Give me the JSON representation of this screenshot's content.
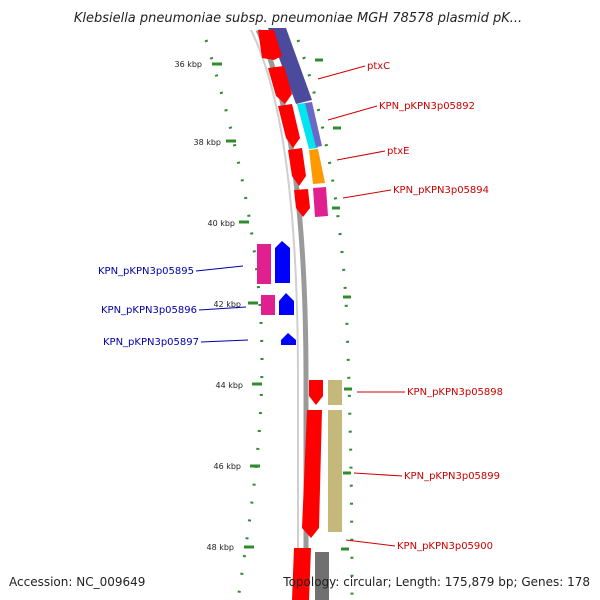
{
  "title": "Klebsiella pneumoniae subsp. pneumoniae MGH 78578 plasmid pK...",
  "footer": {
    "accession": "Accession: NC_009649",
    "topology": "Topology: circular; Length: 175,879 bp; Genes: 178"
  },
  "ticks": [
    "36 kbp",
    "38 kbp",
    "40 kbp",
    "42 kbp",
    "44 kbp",
    "46 kbp",
    "48 kbp"
  ],
  "gene_labels": {
    "outer": [
      "ptxC",
      "KPN_pKPN3p05892",
      "ptxE",
      "KPN_pKPN3p05894",
      "KPN_pKPN3p05898",
      "KPN_pKPN3p05899",
      "KPN_pKPN3p05900"
    ],
    "inner": [
      "KPN_pKPN3p05895",
      "KPN_pKPN3p05896",
      "KPN_pKPN3p05897"
    ]
  },
  "colors": {
    "forward_strand": "#ff0000",
    "reverse_strand": "#0000ff",
    "cog_purple": "#4b4a9c",
    "cog_cyan": "#00e5ee",
    "cog_orange": "#ff9900",
    "cog_magenta": "#e0208f",
    "cog_khaki": "#c4b87a",
    "cog_gray": "#707070",
    "backbone": "#888888",
    "label_red": "#cc0000",
    "label_blue": "#0000aa"
  }
}
